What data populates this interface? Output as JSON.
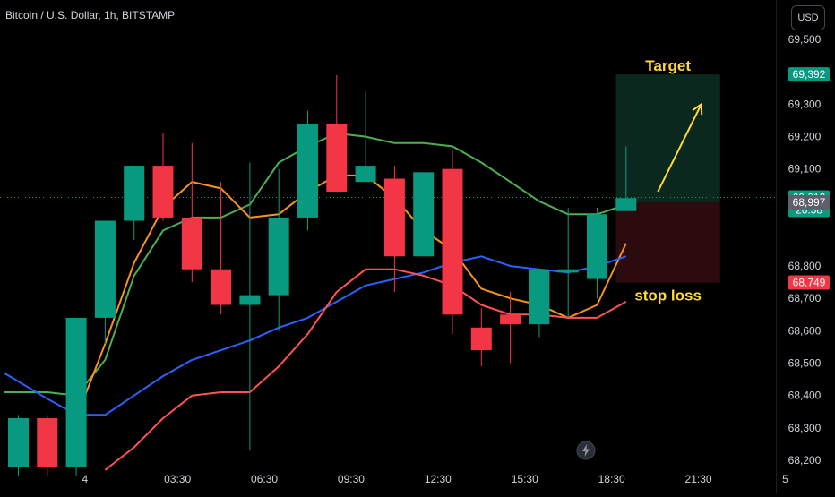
{
  "header": {
    "title": "Bitcoin / U.S. Dollar, 1h, BITSTAMP"
  },
  "currency_button": "USD",
  "colors": {
    "bull": "#089981",
    "bear": "#f23645",
    "ma_green": "#4caf50",
    "ma_orange": "#f7931a",
    "ma_blue": "#2962ff",
    "ma_red": "#ff5252",
    "target": "#ffd93d"
  },
  "chart_data": {
    "type": "candlestick",
    "ylim": [
      68150,
      69600
    ],
    "y_ticks": [
      {
        "value": 69500,
        "label": "69,500"
      },
      {
        "value": 69400,
        "label": "69,400"
      },
      {
        "value": 69300,
        "label": "69,300"
      },
      {
        "value": 69200,
        "label": "69,200"
      },
      {
        "value": 69100,
        "label": "69,100"
      },
      {
        "value": 68800,
        "label": "68,800"
      },
      {
        "value": 68700,
        "label": "68,700"
      },
      {
        "value": 68600,
        "label": "68,600"
      },
      {
        "value": 68500,
        "label": "68,500"
      },
      {
        "value": 68400,
        "label": "68,400"
      },
      {
        "value": 68300,
        "label": "68,300"
      },
      {
        "value": 68200,
        "label": "68,200"
      }
    ],
    "x_ticks": [
      {
        "index": 2.3,
        "label": "4"
      },
      {
        "index": 5.5,
        "label": "03:30"
      },
      {
        "index": 8.5,
        "label": "06:30"
      },
      {
        "index": 11.5,
        "label": "09:30"
      },
      {
        "index": 14.5,
        "label": "12:30"
      },
      {
        "index": 17.5,
        "label": "15:30"
      },
      {
        "index": 20.5,
        "label": "18:30"
      },
      {
        "index": 23.5,
        "label": "21:30"
      },
      {
        "index": 26.5,
        "label": "5"
      }
    ],
    "candles": [
      {
        "i": 0,
        "o": 68180,
        "h": 68340,
        "l": 68150,
        "c": 68330
      },
      {
        "i": 1,
        "o": 68330,
        "h": 68340,
        "l": 68150,
        "c": 68180
      },
      {
        "i": 2,
        "o": 68180,
        "h": 68640,
        "l": 68150,
        "c": 68640
      },
      {
        "i": 3,
        "o": 68640,
        "h": 68940,
        "l": 68560,
        "c": 68940
      },
      {
        "i": 4,
        "o": 68940,
        "h": 69110,
        "l": 68880,
        "c": 69110
      },
      {
        "i": 5,
        "o": 69110,
        "h": 69210,
        "l": 68940,
        "c": 68950
      },
      {
        "i": 6,
        "o": 68950,
        "h": 69180,
        "l": 68750,
        "c": 68790
      },
      {
        "i": 7,
        "o": 68790,
        "h": 69060,
        "l": 68650,
        "c": 68680
      },
      {
        "i": 8,
        "o": 68680,
        "h": 69120,
        "l": 68230,
        "c": 68710
      },
      {
        "i": 9,
        "o": 68710,
        "h": 69100,
        "l": 68600,
        "c": 68950
      },
      {
        "i": 10,
        "o": 68950,
        "h": 69280,
        "l": 68910,
        "c": 69240
      },
      {
        "i": 11,
        "o": 69240,
        "h": 69390,
        "l": 69030,
        "c": 69030
      },
      {
        "i": 12,
        "o": 69060,
        "h": 69340,
        "l": 69060,
        "c": 69110
      },
      {
        "i": 13,
        "o": 69070,
        "h": 69110,
        "l": 68720,
        "c": 68830
      },
      {
        "i": 14,
        "o": 68830,
        "h": 69090,
        "l": 68830,
        "c": 69090
      },
      {
        "i": 15,
        "o": 69100,
        "h": 69160,
        "l": 68590,
        "c": 68650
      },
      {
        "i": 16,
        "o": 68610,
        "h": 68670,
        "l": 68490,
        "c": 68540
      },
      {
        "i": 17,
        "o": 68650,
        "h": 68720,
        "l": 68500,
        "c": 68620
      },
      {
        "i": 18,
        "o": 68620,
        "h": 68790,
        "l": 68580,
        "c": 68790
      },
      {
        "i": 19,
        "o": 68780,
        "h": 68980,
        "l": 68640,
        "c": 68790
      },
      {
        "i": 20,
        "o": 68760,
        "h": 68980,
        "l": 68700,
        "c": 68960
      },
      {
        "i": 21,
        "o": 68970,
        "h": 69170,
        "l": 68970,
        "c": 69010
      }
    ],
    "moving_averages": [
      {
        "color_key": "ma_green",
        "points": [
          [
            -0.5,
            68410
          ],
          [
            1,
            68410
          ],
          [
            2,
            68400
          ],
          [
            3,
            68510
          ],
          [
            4,
            68770
          ],
          [
            5,
            68910
          ],
          [
            6,
            68950
          ],
          [
            7,
            68950
          ],
          [
            8,
            68990
          ],
          [
            9,
            69120
          ],
          [
            10,
            69170
          ],
          [
            11,
            69210
          ],
          [
            12,
            69200
          ],
          [
            13,
            69180
          ],
          [
            14,
            69180
          ],
          [
            15,
            69170
          ],
          [
            16,
            69120
          ],
          [
            17,
            69060
          ],
          [
            18,
            69000
          ],
          [
            19,
            68960
          ],
          [
            20,
            68960
          ],
          [
            21,
            68990
          ]
        ]
      },
      {
        "color_key": "ma_orange",
        "points": [
          [
            2,
            68330
          ],
          [
            3,
            68560
          ],
          [
            4,
            68810
          ],
          [
            5,
            68980
          ],
          [
            6,
            69060
          ],
          [
            7,
            69040
          ],
          [
            8,
            68950
          ],
          [
            9,
            68960
          ],
          [
            10,
            69030
          ],
          [
            11,
            69080
          ],
          [
            12,
            69080
          ],
          [
            13,
            69010
          ],
          [
            14,
            68910
          ],
          [
            15,
            68850
          ],
          [
            16,
            68730
          ],
          [
            17,
            68700
          ],
          [
            18,
            68680
          ],
          [
            19,
            68640
          ],
          [
            20,
            68680
          ],
          [
            21,
            68870
          ]
        ]
      },
      {
        "color_key": "ma_blue",
        "points": [
          [
            -0.5,
            68470
          ],
          [
            1,
            68390
          ],
          [
            2,
            68340
          ],
          [
            3,
            68340
          ],
          [
            4,
            68400
          ],
          [
            5,
            68460
          ],
          [
            6,
            68510
          ],
          [
            7,
            68540
          ],
          [
            8,
            68570
          ],
          [
            9,
            68610
          ],
          [
            10,
            68640
          ],
          [
            11,
            68690
          ],
          [
            12,
            68740
          ],
          [
            13,
            68760
          ],
          [
            14,
            68780
          ],
          [
            15,
            68810
          ],
          [
            16,
            68830
          ],
          [
            17,
            68800
          ],
          [
            18,
            68790
          ],
          [
            19,
            68780
          ],
          [
            20,
            68800
          ],
          [
            21,
            68830
          ]
        ]
      },
      {
        "color_key": "ma_red",
        "points": [
          [
            3,
            68170
          ],
          [
            4,
            68240
          ],
          [
            5,
            68330
          ],
          [
            6,
            68400
          ],
          [
            7,
            68410
          ],
          [
            8,
            68410
          ],
          [
            9,
            68490
          ],
          [
            10,
            68590
          ],
          [
            11,
            68720
          ],
          [
            12,
            68790
          ],
          [
            13,
            68790
          ],
          [
            14,
            68770
          ],
          [
            15,
            68740
          ],
          [
            16,
            68680
          ],
          [
            17,
            68650
          ],
          [
            18,
            68650
          ],
          [
            19,
            68640
          ],
          [
            20,
            68640
          ],
          [
            21,
            68690
          ]
        ]
      }
    ],
    "current_price": 69012,
    "price_badges": [
      {
        "label": "69,392",
        "value": 69392,
        "bg": "#089981"
      },
      {
        "label": "69,012",
        "sub": "26:38",
        "value": 69012,
        "bg": "#089981"
      },
      {
        "label": "68,997",
        "value": 68997,
        "bg": "#5d606b"
      },
      {
        "label": "68,749",
        "value": 68749,
        "bg": "#f23645"
      }
    ],
    "position": {
      "i_start": 20.65,
      "i_end": 24.25,
      "target": 69392,
      "entry": 68997,
      "stop": 68749,
      "target_label": "Target",
      "stop_label": "stop loss"
    },
    "arrow": {
      "from": [
        22.1,
        69030
      ],
      "to": [
        23.6,
        69300
      ]
    }
  }
}
